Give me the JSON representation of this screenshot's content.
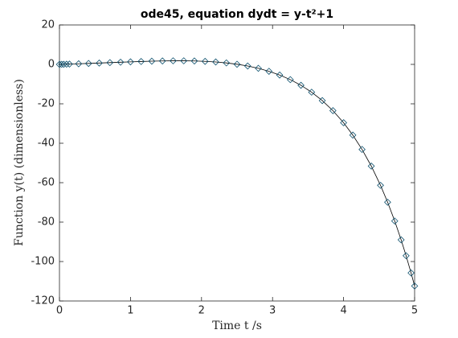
{
  "chart_data": {
    "type": "line",
    "title": "ode45, equation dydt = y-t²+1",
    "xlabel": "Time t /s",
    "ylabel": "Function y(t) (dimensionless)",
    "x": [
      0,
      0.03,
      0.06,
      0.1,
      0.14,
      0.27,
      0.41,
      0.56,
      0.71,
      0.86,
      1.0,
      1.15,
      1.3,
      1.45,
      1.6,
      1.75,
      1.9,
      2.05,
      2.2,
      2.35,
      2.5,
      2.65,
      2.8,
      2.95,
      3.1,
      3.25,
      3.4,
      3.55,
      3.7,
      3.85,
      4.0,
      4.13,
      4.26,
      4.39,
      4.52,
      4.62,
      4.72,
      4.81,
      4.88,
      4.95,
      5.0
    ],
    "series": [
      {
        "color": "#0b4f6c",
        "line_color": "#000000",
        "values": [
          0,
          0.03,
          0.06,
          0.1,
          0.15,
          0.3,
          0.48,
          0.68,
          0.89,
          1.1,
          1.28,
          1.46,
          1.62,
          1.74,
          1.81,
          1.81,
          1.72,
          1.53,
          1.22,
          0.74,
          0.07,
          -0.83,
          -2.0,
          -3.5,
          -5.39,
          -7.73,
          -10.6,
          -14.11,
          -18.36,
          -23.47,
          -29.6,
          -35.86,
          -43.14,
          -51.58,
          -61.35,
          -69.91,
          -79.45,
          -88.97,
          -97.06,
          -105.77,
          -112.41
        ]
      }
    ],
    "xlim": [
      0,
      5
    ],
    "xticks": [
      0,
      1,
      2,
      3,
      4,
      5
    ],
    "ylim": [
      -120,
      20
    ],
    "yticks": [
      -120,
      -100,
      -80,
      -60,
      -40,
      -20,
      0,
      20
    ]
  }
}
